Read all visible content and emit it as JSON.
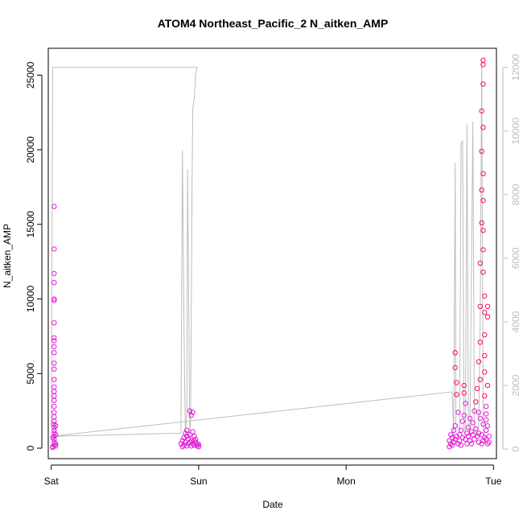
{
  "chart_data": {
    "type": "scatter",
    "title": "ATOM4 Northeast_Pacific_2 N_aitken_AMP",
    "xlabel": "Date",
    "ylabel": "N_aitken_AMP",
    "x_ticks": [
      "Sat",
      "Sun",
      "Mon",
      "Tue"
    ],
    "xlim": [
      -0.02,
      3.02
    ],
    "ylim": [
      -700,
      26800
    ],
    "y_ticks": [
      0,
      5000,
      10000,
      15000,
      20000,
      25000
    ],
    "y2lim": [
      -300,
      12600
    ],
    "y2_ticks": [
      0,
      2000,
      4000,
      6000,
      8000,
      10000,
      12000
    ],
    "grid": false,
    "legend": "none",
    "colors": {
      "axis": "#000000",
      "line": "#bdbdbd",
      "right_axis": "#bdbdbd",
      "point_low": "#e41ad8",
      "point_high": "#ff0a5a"
    },
    "series": [
      {
        "axis": "left",
        "kind": "points",
        "points": [
          [
            0.02,
            16200
          ],
          [
            0.02,
            13350
          ],
          [
            0.02,
            11700
          ],
          [
            0.02,
            11100
          ],
          [
            0.02,
            10000
          ],
          [
            0.02,
            9900
          ],
          [
            0.02,
            8400
          ],
          [
            0.02,
            7400
          ],
          [
            0.02,
            7200
          ],
          [
            0.02,
            6800
          ],
          [
            0.02,
            6400
          ],
          [
            0.02,
            5700
          ],
          [
            0.02,
            5300
          ],
          [
            0.02,
            4600
          ],
          [
            0.02,
            4100
          ],
          [
            0.02,
            3800
          ],
          [
            0.02,
            3500
          ],
          [
            0.02,
            3200
          ],
          [
            0.02,
            2800
          ],
          [
            0.02,
            2400
          ],
          [
            0.02,
            2100
          ],
          [
            0.02,
            1800
          ],
          [
            0.02,
            1600
          ],
          [
            0.02,
            1400
          ],
          [
            0.02,
            1200
          ],
          [
            0.02,
            1000
          ],
          [
            0.02,
            800
          ],
          [
            0.02,
            600
          ],
          [
            0.02,
            400
          ],
          [
            0.02,
            200
          ],
          [
            0.01,
            100
          ],
          [
            0.03,
            300
          ],
          [
            0.01,
            700
          ],
          [
            0.03,
            1500
          ],
          [
            0.03,
            900
          ],
          [
            0.01,
            50
          ],
          [
            0.03,
            150
          ],
          [
            0.88,
            300
          ],
          [
            0.89,
            500
          ],
          [
            0.9,
            200
          ],
          [
            0.9,
            700
          ],
          [
            0.91,
            1000
          ],
          [
            0.91,
            400
          ],
          [
            0.92,
            800
          ],
          [
            0.92,
            1200
          ],
          [
            0.93,
            300
          ],
          [
            0.93,
            600
          ],
          [
            0.94,
            2500
          ],
          [
            0.94,
            900
          ],
          [
            0.95,
            2200
          ],
          [
            0.95,
            500
          ],
          [
            0.96,
            2400
          ],
          [
            0.96,
            1100
          ],
          [
            0.96,
            300
          ],
          [
            0.97,
            800
          ],
          [
            0.97,
            200
          ],
          [
            0.98,
            600
          ],
          [
            0.98,
            400
          ],
          [
            0.99,
            150
          ],
          [
            0.99,
            300
          ],
          [
            1.0,
            100
          ],
          [
            1.0,
            250
          ],
          [
            0.89,
            100
          ],
          [
            0.92,
            150
          ],
          [
            0.95,
            150
          ],
          [
            0.97,
            500
          ],
          [
            0.94,
            400
          ],
          [
            2.7,
            100
          ],
          [
            2.7,
            500
          ],
          [
            2.71,
            300
          ],
          [
            2.71,
            900
          ],
          [
            2.72,
            200
          ],
          [
            2.72,
            700
          ],
          [
            2.73,
            1200
          ],
          [
            2.73,
            400
          ],
          [
            2.74,
            600
          ],
          [
            2.74,
            1500
          ],
          [
            2.74,
            6400
          ],
          [
            2.74,
            5400
          ],
          [
            2.75,
            4400
          ],
          [
            2.75,
            3600
          ],
          [
            2.75,
            800
          ],
          [
            2.76,
            2400
          ],
          [
            2.76,
            300
          ],
          [
            2.77,
            900
          ],
          [
            2.77,
            500
          ],
          [
            2.78,
            1200
          ],
          [
            2.78,
            200
          ],
          [
            2.79,
            700
          ],
          [
            2.79,
            1800
          ],
          [
            2.8,
            2200
          ],
          [
            2.8,
            4200
          ],
          [
            2.8,
            3700
          ],
          [
            2.81,
            3000
          ],
          [
            2.81,
            600
          ],
          [
            2.82,
            1000
          ],
          [
            2.82,
            300
          ],
          [
            2.83,
            800
          ],
          [
            2.83,
            1400
          ],
          [
            2.84,
            500
          ],
          [
            2.84,
            2000
          ],
          [
            2.85,
            1100
          ],
          [
            2.85,
            300
          ],
          [
            2.86,
            900
          ],
          [
            2.86,
            1700
          ],
          [
            2.87,
            2500
          ],
          [
            2.87,
            600
          ],
          [
            2.88,
            1300
          ],
          [
            2.88,
            3100
          ],
          [
            2.89,
            4000
          ],
          [
            2.89,
            800
          ],
          [
            2.9,
            5800
          ],
          [
            2.9,
            2400
          ],
          [
            2.9,
            1000
          ],
          [
            2.91,
            4600
          ],
          [
            2.91,
            7100
          ],
          [
            2.91,
            9500
          ],
          [
            2.91,
            12400
          ],
          [
            2.92,
            15100
          ],
          [
            2.92,
            17300
          ],
          [
            2.92,
            19900
          ],
          [
            2.92,
            22600
          ],
          [
            2.93,
            26000
          ],
          [
            2.93,
            25700
          ],
          [
            2.93,
            24400
          ],
          [
            2.93,
            21500
          ],
          [
            2.93,
            18400
          ],
          [
            2.93,
            16600
          ],
          [
            2.93,
            14600
          ],
          [
            2.93,
            13300
          ],
          [
            2.93,
            11800
          ],
          [
            2.94,
            10200
          ],
          [
            2.94,
            9100
          ],
          [
            2.94,
            7600
          ],
          [
            2.94,
            6200
          ],
          [
            2.94,
            5100
          ],
          [
            2.94,
            3500
          ],
          [
            2.95,
            2800
          ],
          [
            2.95,
            1900
          ],
          [
            2.95,
            1200
          ],
          [
            2.95,
            600
          ],
          [
            2.96,
            300
          ],
          [
            2.96,
            9500
          ],
          [
            2.96,
            8800
          ],
          [
            2.96,
            4200
          ],
          [
            2.96,
            1500
          ],
          [
            2.97,
            800
          ],
          [
            2.97,
            400
          ],
          [
            2.92,
            300
          ],
          [
            2.92,
            900
          ],
          [
            2.93,
            500
          ],
          [
            2.93,
            1600
          ],
          [
            2.94,
            700
          ],
          [
            2.95,
            2300
          ],
          [
            2.91,
            2000
          ],
          [
            2.9,
            400
          ]
        ]
      },
      {
        "axis": "right",
        "kind": "line",
        "points": [
          [
            0.0,
            700
          ],
          [
            0.01,
            12000
          ],
          [
            0.99,
            12000
          ],
          [
            0.98,
            11800
          ],
          [
            0.97,
            11000
          ],
          [
            0.96,
            10700
          ],
          [
            0.955,
            8000
          ],
          [
            0.95,
            4000
          ],
          [
            0.945,
            900
          ],
          [
            0.94,
            400
          ],
          [
            0.93,
            6000
          ],
          [
            0.925,
            8800
          ],
          [
            0.92,
            1200
          ],
          [
            0.91,
            400
          ],
          [
            0.9,
            4000
          ],
          [
            0.89,
            9400
          ],
          [
            0.88,
            500
          ],
          [
            0.0,
            400
          ],
          [
            2.72,
            1800
          ],
          [
            2.73,
            400
          ],
          [
            2.74,
            9000
          ],
          [
            2.745,
            800
          ],
          [
            2.77,
            600
          ],
          [
            2.78,
            9600
          ],
          [
            2.79,
            9700
          ],
          [
            2.8,
            700
          ],
          [
            2.81,
            400
          ],
          [
            2.82,
            10200
          ],
          [
            2.83,
            800
          ],
          [
            2.84,
            400
          ],
          [
            2.86,
            10300
          ],
          [
            2.87,
            900
          ],
          [
            2.88,
            400
          ],
          [
            2.89,
            400
          ],
          [
            2.9,
            700
          ],
          [
            2.91,
            4000
          ],
          [
            2.92,
            12200
          ],
          [
            2.93,
            700
          ],
          [
            2.94,
            400
          ]
        ]
      }
    ]
  }
}
